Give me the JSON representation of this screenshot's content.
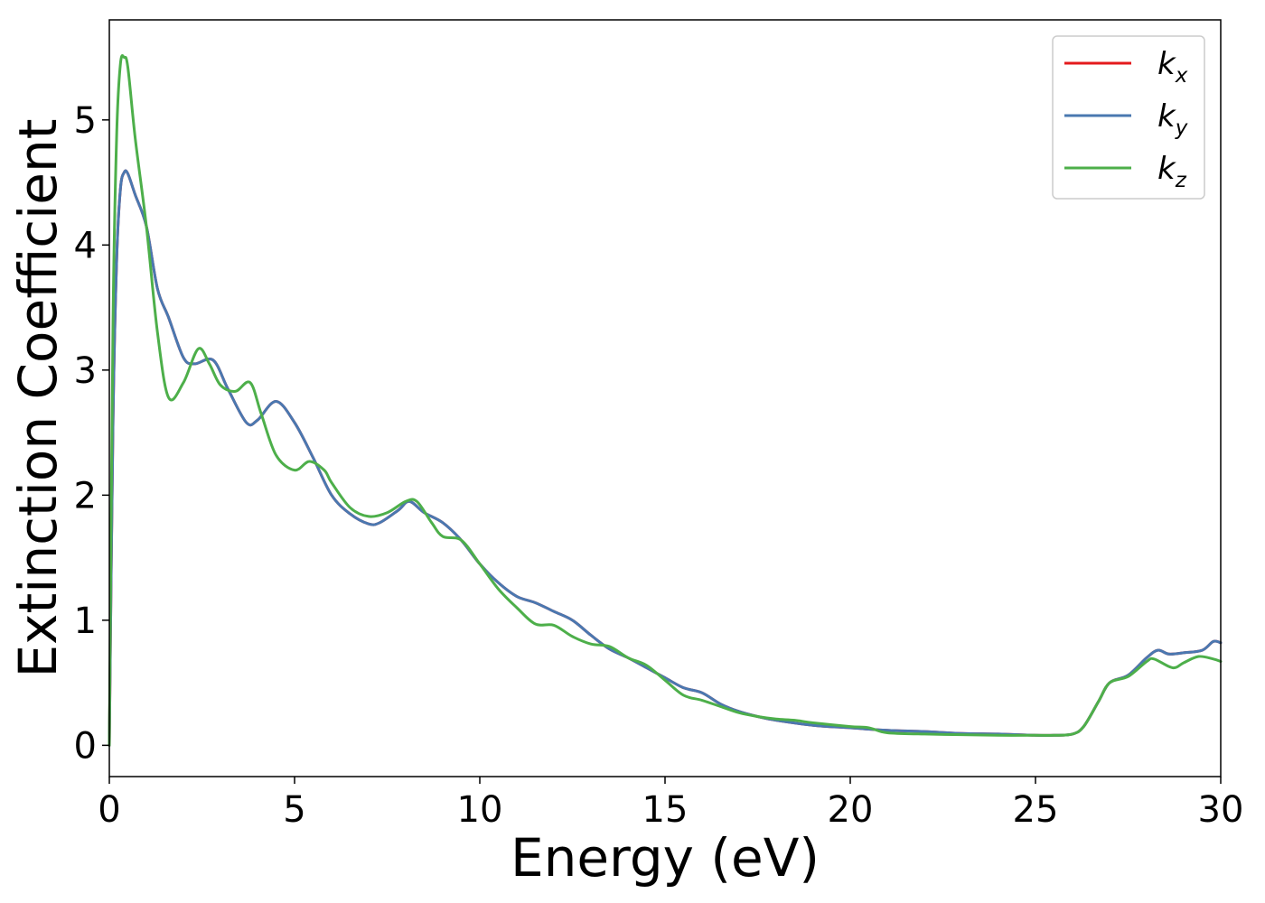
{
  "chart_data": {
    "type": "line",
    "xlabel": "Energy (eV)",
    "ylabel": "Extinction Coefficient",
    "xlim": [
      0,
      30
    ],
    "ylim": [
      -0.25,
      5.8
    ],
    "xticks": [
      "0",
      "5",
      "10",
      "15",
      "20",
      "25",
      "30"
    ],
    "yticks": [
      "0",
      "1",
      "2",
      "3",
      "4",
      "5"
    ],
    "grid": false,
    "legend_position": "top-right",
    "series": [
      {
        "name": "k",
        "subscript": "x",
        "color": "#e41a1c",
        "x": [
          0,
          0.1,
          0.2,
          0.3,
          0.4,
          0.5,
          0.7,
          1.0,
          1.3,
          1.6,
          2.0,
          2.3,
          2.8,
          3.2,
          3.7,
          4.0,
          4.5,
          5.0,
          5.5,
          6.0,
          6.5,
          7.0,
          7.3,
          7.8,
          8.1,
          8.5,
          9.0,
          9.5,
          10.0,
          10.5,
          11.0,
          11.5,
          12.0,
          12.5,
          13.0,
          13.5,
          14.0,
          14.5,
          15.0,
          15.5,
          16.0,
          16.5,
          17.0,
          17.5,
          18.0,
          19.0,
          20.0,
          21.0,
          22.0,
          23.0,
          24.0,
          25.0,
          25.5,
          26.0,
          26.3,
          26.7,
          27.0,
          27.5,
          28.0,
          28.3,
          28.6,
          29.0,
          29.5,
          29.8,
          30.0
        ],
        "y": [
          0,
          2.6,
          3.9,
          4.45,
          4.58,
          4.57,
          4.4,
          4.15,
          3.65,
          3.42,
          3.1,
          3.05,
          3.08,
          2.85,
          2.58,
          2.6,
          2.75,
          2.58,
          2.3,
          2.0,
          1.85,
          1.77,
          1.78,
          1.88,
          1.95,
          1.86,
          1.78,
          1.64,
          1.45,
          1.3,
          1.19,
          1.14,
          1.07,
          1.0,
          0.88,
          0.77,
          0.7,
          0.62,
          0.54,
          0.46,
          0.42,
          0.33,
          0.27,
          0.23,
          0.2,
          0.16,
          0.14,
          0.12,
          0.11,
          0.095,
          0.09,
          0.08,
          0.08,
          0.09,
          0.15,
          0.35,
          0.5,
          0.56,
          0.7,
          0.76,
          0.73,
          0.74,
          0.76,
          0.83,
          0.82
        ]
      },
      {
        "name": "k",
        "subscript": "y",
        "color": "#4a78b0",
        "x": [
          0,
          0.1,
          0.2,
          0.3,
          0.4,
          0.5,
          0.7,
          1.0,
          1.3,
          1.6,
          2.0,
          2.3,
          2.8,
          3.2,
          3.7,
          4.0,
          4.5,
          5.0,
          5.5,
          6.0,
          6.5,
          7.0,
          7.3,
          7.8,
          8.1,
          8.5,
          9.0,
          9.5,
          10.0,
          10.5,
          11.0,
          11.5,
          12.0,
          12.5,
          13.0,
          13.5,
          14.0,
          14.5,
          15.0,
          15.5,
          16.0,
          16.5,
          17.0,
          17.5,
          18.0,
          19.0,
          20.0,
          21.0,
          22.0,
          23.0,
          24.0,
          25.0,
          25.5,
          26.0,
          26.3,
          26.7,
          27.0,
          27.5,
          28.0,
          28.3,
          28.6,
          29.0,
          29.5,
          29.8,
          30.0
        ],
        "y": [
          0,
          2.6,
          3.9,
          4.45,
          4.58,
          4.57,
          4.4,
          4.15,
          3.65,
          3.42,
          3.1,
          3.05,
          3.08,
          2.85,
          2.58,
          2.6,
          2.75,
          2.58,
          2.3,
          2.0,
          1.85,
          1.77,
          1.78,
          1.88,
          1.95,
          1.86,
          1.78,
          1.64,
          1.45,
          1.3,
          1.19,
          1.14,
          1.07,
          1.0,
          0.88,
          0.77,
          0.7,
          0.62,
          0.54,
          0.46,
          0.42,
          0.33,
          0.27,
          0.23,
          0.2,
          0.16,
          0.14,
          0.12,
          0.11,
          0.095,
          0.09,
          0.08,
          0.08,
          0.09,
          0.15,
          0.35,
          0.5,
          0.56,
          0.7,
          0.76,
          0.73,
          0.74,
          0.76,
          0.83,
          0.82
        ]
      },
      {
        "name": "k",
        "subscript": "z",
        "color": "#4daf4a",
        "x": [
          0,
          0.1,
          0.2,
          0.3,
          0.4,
          0.5,
          0.7,
          1.0,
          1.3,
          1.6,
          2.0,
          2.4,
          2.7,
          3.0,
          3.4,
          3.8,
          4.1,
          4.5,
          5.0,
          5.4,
          5.8,
          6.0,
          6.5,
          7.0,
          7.5,
          8.0,
          8.3,
          8.7,
          9.0,
          9.5,
          10.0,
          10.5,
          11.0,
          11.5,
          12.0,
          12.5,
          13.0,
          13.5,
          14.0,
          14.5,
          15.0,
          15.5,
          16.0,
          16.5,
          17.0,
          17.5,
          18.0,
          18.5,
          19.0,
          20.0,
          20.5,
          21.0,
          22.0,
          23.0,
          24.0,
          25.0,
          25.5,
          26.0,
          26.3,
          26.7,
          27.0,
          27.5,
          28.0,
          28.2,
          28.7,
          29.0,
          29.4,
          29.8,
          30.0
        ],
        "y": [
          0,
          3.4,
          4.9,
          5.45,
          5.5,
          5.42,
          4.85,
          4.15,
          3.3,
          2.78,
          2.9,
          3.17,
          3.05,
          2.88,
          2.83,
          2.9,
          2.65,
          2.32,
          2.2,
          2.27,
          2.2,
          2.1,
          1.9,
          1.83,
          1.86,
          1.95,
          1.95,
          1.78,
          1.67,
          1.64,
          1.45,
          1.25,
          1.1,
          0.97,
          0.96,
          0.87,
          0.81,
          0.79,
          0.7,
          0.64,
          0.52,
          0.4,
          0.36,
          0.31,
          0.26,
          0.23,
          0.21,
          0.2,
          0.18,
          0.15,
          0.14,
          0.1,
          0.09,
          0.085,
          0.08,
          0.08,
          0.08,
          0.09,
          0.15,
          0.35,
          0.5,
          0.55,
          0.67,
          0.69,
          0.62,
          0.66,
          0.71,
          0.69,
          0.67
        ]
      }
    ]
  }
}
